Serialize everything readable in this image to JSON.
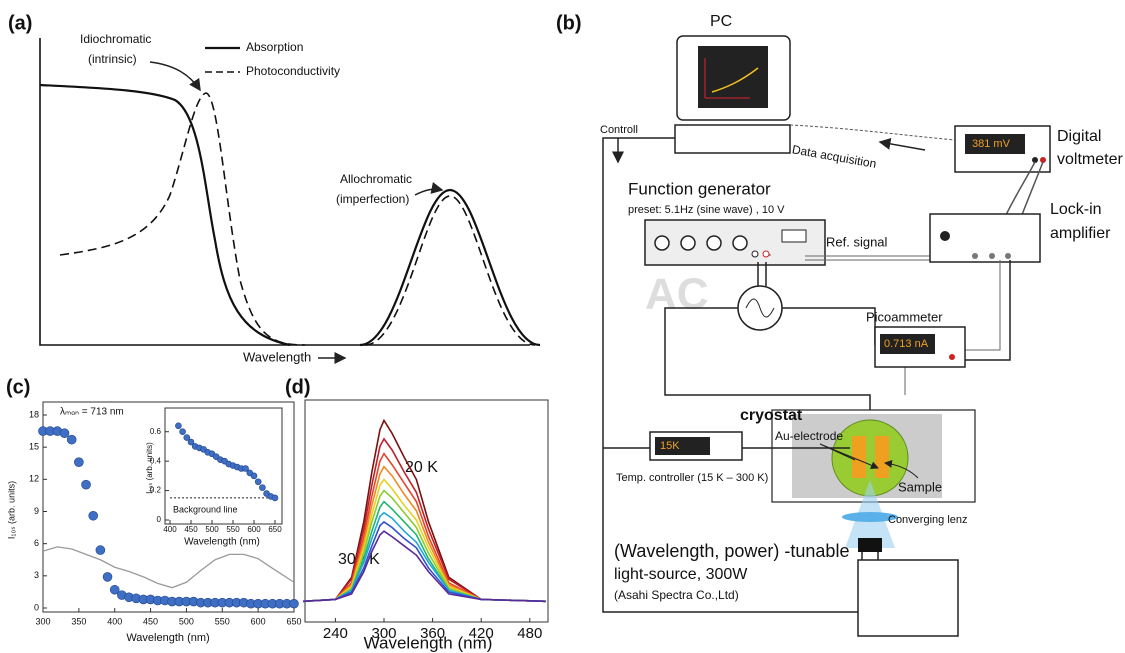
{
  "panel_labels": [
    "(a)",
    "(b)",
    "(c)",
    "(d)"
  ],
  "panel_a": {
    "legend": [
      "Absorption",
      "Photoconductivity"
    ],
    "annotations": [
      [
        "Idiochromatic",
        "(intrinsic)"
      ],
      [
        "Allochromatic",
        "(imperfection)"
      ]
    ],
    "xlabel": "Wavelength"
  },
  "diagram": {
    "pc": "PC",
    "control": "Controll",
    "data_acquisition": "Data acquisition",
    "voltmeter": {
      "display": "381 mV",
      "label": [
        "Digital",
        "voltmeter"
      ]
    },
    "function_generator": {
      "label": "Function generator",
      "preset": "preset: 5.1Hz (sine wave) , 10 V"
    },
    "ref_signal": "Ref. signal",
    "lock_in": [
      "Lock-in",
      "amplifier"
    ],
    "ac": "AC",
    "picoammeter": {
      "label": "Picoammeter",
      "display": "0.713 nA"
    },
    "cryostat": "cryostat",
    "electrode": "Au-electrode",
    "sample": "Sample",
    "temp_controller": {
      "display": "15K",
      "label": "Temp. controller (15 K – 300 K)"
    },
    "lens": "Converging lenz",
    "light_source": [
      "(Wavelength, power) -tunable",
      "light-source, 300W",
      "(Asahi Spectra Co.,Ltd)"
    ]
  },
  "chart_data": [
    {
      "type": "scatter",
      "annotations": [
        "λₘₒₙ = 713 nm"
      ],
      "xlabel": "Wavelength (nm)",
      "ylabel": "I₁₀ₛ (arb. units)",
      "xlim": [
        300,
        650
      ],
      "xticks": [
        300,
        350,
        400,
        450,
        500,
        550,
        600,
        650
      ],
      "ylim": [
        0,
        18
      ],
      "yticks": [
        0,
        3,
        6,
        9,
        12,
        15,
        18
      ],
      "series": [
        {
          "color": "#3f6fc4",
          "style": "points",
          "x": [
            300,
            310,
            320,
            330,
            340,
            350,
            360,
            370,
            380,
            390,
            400,
            410,
            420,
            430,
            440,
            450,
            460,
            470,
            480,
            490,
            500,
            510,
            520,
            530,
            540,
            550,
            560,
            570,
            580,
            590,
            600,
            610,
            620,
            630,
            640,
            650
          ],
          "values": [
            16.5,
            16.5,
            16.5,
            16.3,
            15.7,
            13.6,
            11.5,
            8.6,
            5.4,
            2.9,
            1.7,
            1.2,
            1.0,
            0.9,
            0.8,
            0.8,
            0.7,
            0.7,
            0.6,
            0.6,
            0.6,
            0.6,
            0.5,
            0.5,
            0.5,
            0.5,
            0.5,
            0.5,
            0.5,
            0.4,
            0.4,
            0.4,
            0.4,
            0.4,
            0.4,
            0.4
          ]
        },
        {
          "color": "#9a9a9a",
          "style": "line",
          "x": [
            300,
            320,
            340,
            360,
            380,
            400,
            420,
            440,
            460,
            480,
            500,
            520,
            540,
            560,
            580,
            600,
            620,
            650
          ],
          "values": [
            5.3,
            5.7,
            5.5,
            5.0,
            4.5,
            3.8,
            3.4,
            2.9,
            2.3,
            1.9,
            2.4,
            3.5,
            4.5,
            5.0,
            5.0,
            4.6,
            3.7,
            2.4
          ]
        }
      ]
    },
    {
      "type": "scatter",
      "annotations": [
        "Background line"
      ],
      "xlabel": "Wavelength (nm)",
      "ylabel": "I₁₀ₛ (arb. units)",
      "xlim": [
        400,
        650
      ],
      "xticks": [
        400,
        450,
        500,
        550,
        600,
        650
      ],
      "ylim": [
        0,
        0.7
      ],
      "yticks": [
        0,
        0.2,
        0.4,
        0.6
      ],
      "hline": 0.15,
      "series": [
        {
          "color": "#3f6fc4",
          "style": "points",
          "x": [
            420,
            430,
            440,
            450,
            460,
            470,
            480,
            490,
            500,
            510,
            520,
            530,
            540,
            550,
            560,
            570,
            580,
            590,
            600,
            610,
            620,
            630,
            640,
            650
          ],
          "values": [
            0.64,
            0.6,
            0.56,
            0.53,
            0.5,
            0.49,
            0.48,
            0.46,
            0.45,
            0.43,
            0.41,
            0.4,
            0.38,
            0.37,
            0.36,
            0.35,
            0.35,
            0.32,
            0.3,
            0.26,
            0.22,
            0.18,
            0.16,
            0.15
          ]
        }
      ]
    },
    {
      "type": "line",
      "annotations": [
        "20 K",
        "300 K"
      ],
      "xlabel": "Wavelength (nm)",
      "xlim": [
        200,
        500
      ],
      "xticks": [
        240,
        300,
        360,
        420,
        480
      ],
      "ylim": [
        0,
        1.1
      ],
      "x": [
        200,
        240,
        260,
        275,
        285,
        295,
        300,
        310,
        325,
        340,
        355,
        380,
        420,
        500
      ],
      "series": [
        {
          "color": "#7a1010",
          "values": [
            0.02,
            0.03,
            0.15,
            0.45,
            0.72,
            0.95,
            1.0,
            0.93,
            0.8,
            0.68,
            0.45,
            0.15,
            0.03,
            0.02
          ]
        },
        {
          "color": "#c0202a",
          "values": [
            0.02,
            0.03,
            0.14,
            0.41,
            0.65,
            0.86,
            0.9,
            0.84,
            0.72,
            0.61,
            0.41,
            0.14,
            0.03,
            0.02
          ]
        },
        {
          "color": "#e8452a",
          "values": [
            0.02,
            0.03,
            0.12,
            0.37,
            0.59,
            0.78,
            0.82,
            0.76,
            0.66,
            0.56,
            0.37,
            0.12,
            0.03,
            0.02
          ]
        },
        {
          "color": "#f08a20",
          "values": [
            0.02,
            0.03,
            0.11,
            0.34,
            0.54,
            0.71,
            0.75,
            0.7,
            0.6,
            0.51,
            0.34,
            0.11,
            0.03,
            0.02
          ]
        },
        {
          "color": "#e8d020",
          "values": [
            0.02,
            0.03,
            0.1,
            0.31,
            0.49,
            0.65,
            0.68,
            0.63,
            0.54,
            0.46,
            0.31,
            0.1,
            0.03,
            0.02
          ]
        },
        {
          "color": "#8ccc30",
          "values": [
            0.02,
            0.03,
            0.09,
            0.28,
            0.45,
            0.59,
            0.62,
            0.58,
            0.5,
            0.42,
            0.28,
            0.09,
            0.03,
            0.02
          ]
        },
        {
          "color": "#20b870",
          "values": [
            0.02,
            0.03,
            0.08,
            0.25,
            0.4,
            0.53,
            0.56,
            0.52,
            0.45,
            0.38,
            0.25,
            0.08,
            0.03,
            0.02
          ]
        },
        {
          "color": "#20a8d8",
          "values": [
            0.02,
            0.03,
            0.08,
            0.23,
            0.36,
            0.48,
            0.5,
            0.47,
            0.4,
            0.34,
            0.23,
            0.08,
            0.03,
            0.02
          ]
        },
        {
          "color": "#3050d0",
          "values": [
            0.02,
            0.03,
            0.07,
            0.2,
            0.32,
            0.43,
            0.45,
            0.42,
            0.36,
            0.31,
            0.2,
            0.07,
            0.03,
            0.02
          ]
        },
        {
          "color": "#5a2a9a",
          "values": [
            0.02,
            0.03,
            0.06,
            0.18,
            0.29,
            0.38,
            0.4,
            0.37,
            0.32,
            0.27,
            0.18,
            0.06,
            0.03,
            0.02
          ]
        }
      ]
    }
  ]
}
